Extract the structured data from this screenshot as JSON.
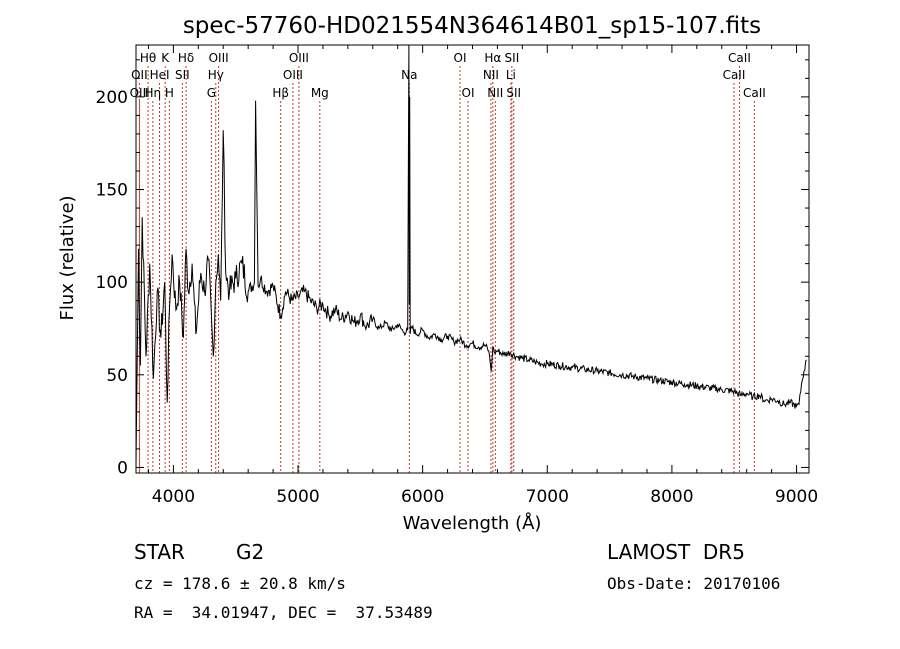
{
  "chart_data": {
    "type": "line",
    "title": "spec-57760-HD021554N364614B01_sp15-107.fits",
    "xlabel": "Wavelength (Å)",
    "ylabel": "Flux (relative)",
    "xlim": [
      3700,
      9100
    ],
    "ylim": [
      -3,
      228
    ],
    "x_ticks": [
      4000,
      5000,
      6000,
      7000,
      8000,
      9000
    ],
    "x_tick_labels": [
      "4000",
      "5000",
      "6000",
      "7000",
      "8000",
      "9000"
    ],
    "y_ticks": [
      0,
      50,
      100,
      150,
      200
    ],
    "y_tick_labels": [
      "0",
      "50",
      "100",
      "150",
      "200"
    ],
    "grid": false,
    "line_color": "#000000",
    "marker_line_color": "#c0392b",
    "spectrum": {
      "wavelength": [
        3700,
        3720,
        3735,
        3750,
        3780,
        3810,
        3840,
        3870,
        3900,
        3930,
        3950,
        3970,
        3990,
        4020,
        4050,
        4080,
        4101,
        4120,
        4150,
        4180,
        4220,
        4250,
        4280,
        4320,
        4340,
        4360,
        4380,
        4400,
        4420,
        4450,
        4500,
        4550,
        4600,
        4650,
        4660,
        4680,
        4700,
        4750,
        4800,
        4861,
        4900,
        4950,
        5000,
        5050,
        5100,
        5150,
        5200,
        5250,
        5300,
        5350,
        5400,
        5450,
        5500,
        5550,
        5600,
        5650,
        5700,
        5750,
        5800,
        5850,
        5880,
        5890,
        5893,
        5896,
        5900,
        5910,
        5950,
        6000,
        6050,
        6100,
        6150,
        6200,
        6250,
        6300,
        6350,
        6400,
        6450,
        6500,
        6530,
        6550,
        6563,
        6575,
        6600,
        6650,
        6700,
        6750,
        6800,
        6850,
        6900,
        6950,
        7000,
        7100,
        7200,
        7300,
        7400,
        7500,
        7600,
        7700,
        7800,
        7900,
        8000,
        8100,
        8200,
        8300,
        8400,
        8500,
        8550,
        8600,
        8650,
        8700,
        8750,
        8800,
        8850,
        8900,
        8950,
        9000,
        9020,
        9040,
        9060,
        9080
      ],
      "flux": [
        1,
        118,
        55,
        135,
        60,
        110,
        48,
        95,
        70,
        100,
        35,
        88,
        115,
        85,
        100,
        70,
        118,
        95,
        110,
        72,
        105,
        95,
        112,
        60,
        100,
        115,
        90,
        182,
        105,
        95,
        102,
        110,
        95,
        100,
        198,
        98,
        102,
        95,
        98,
        82,
        95,
        90,
        92,
        95,
        90,
        86,
        88,
        82,
        85,
        80,
        84,
        78,
        82,
        76,
        80,
        75,
        78,
        74,
        77,
        73,
        74,
        235,
        88,
        200,
        72,
        76,
        72,
        74,
        70,
        72,
        69,
        71,
        68,
        69,
        66,
        67,
        65,
        66,
        63,
        52,
        65,
        62,
        63,
        61,
        62,
        60,
        59,
        58,
        57,
        56,
        56,
        55,
        54,
        53,
        52,
        51,
        50,
        49,
        48,
        47,
        46,
        45,
        44,
        43,
        42,
        41,
        39,
        40,
        38,
        39,
        36,
        37,
        36,
        34,
        35,
        33,
        34,
        45,
        52,
        58
      ]
    },
    "line_markers": [
      {
        "label": "Hθ",
        "wavelength": 3797,
        "row": 0
      },
      {
        "label": "K",
        "wavelength": 3934,
        "row": 0
      },
      {
        "label": "Hδ",
        "wavelength": 4102,
        "row": 0
      },
      {
        "label": "OIII",
        "wavelength": 4363,
        "row": 0
      },
      {
        "label": "OIII",
        "wavelength": 5007,
        "row": 0
      },
      {
        "label": "OI",
        "wavelength": 6300,
        "row": 0
      },
      {
        "label": "Hα",
        "wavelength": 6563,
        "row": 0
      },
      {
        "label": "SII",
        "wavelength": 6716,
        "row": 0
      },
      {
        "label": "CaII",
        "wavelength": 8542,
        "row": 0
      },
      {
        "label": "OII",
        "wavelength": 3727,
        "row": 1
      },
      {
        "label": "HeI",
        "wavelength": 3889,
        "row": 1
      },
      {
        "label": "SII",
        "wavelength": 4072,
        "row": 1
      },
      {
        "label": "Hγ",
        "wavelength": 4340,
        "row": 1
      },
      {
        "label": "OIII",
        "wavelength": 4959,
        "row": 1
      },
      {
        "label": "Na",
        "wavelength": 5893,
        "row": 1
      },
      {
        "label": "NII",
        "wavelength": 6548,
        "row": 1
      },
      {
        "label": "Li",
        "wavelength": 6708,
        "row": 1
      },
      {
        "label": "CaII",
        "wavelength": 8498,
        "row": 1
      },
      {
        "label": "OIII",
        "wavelength": 3729,
        "row": 2
      },
      {
        "label": "Hη",
        "wavelength": 3835,
        "row": 2
      },
      {
        "label": "H",
        "wavelength": 3968,
        "row": 2
      },
      {
        "label": "G",
        "wavelength": 4305,
        "row": 2
      },
      {
        "label": "Hβ",
        "wavelength": 4861,
        "row": 2
      },
      {
        "label": "Mg",
        "wavelength": 5175,
        "row": 2
      },
      {
        "label": "OI",
        "wavelength": 6364,
        "row": 2
      },
      {
        "label": "NII",
        "wavelength": 6583,
        "row": 2
      },
      {
        "label": "SII",
        "wavelength": 6731,
        "row": 2
      },
      {
        "label": "CaII",
        "wavelength": 8662,
        "row": 2
      }
    ]
  },
  "info": {
    "object_class": "STAR",
    "subclass": "G2",
    "survey": "LAMOST  DR5",
    "redshift_text": "cz = 178.6 ± 20.8 km/s",
    "obs_date_text": "Obs-Date: 20170106",
    "coords_text": "RA =  34.01947, DEC =  37.53489"
  }
}
